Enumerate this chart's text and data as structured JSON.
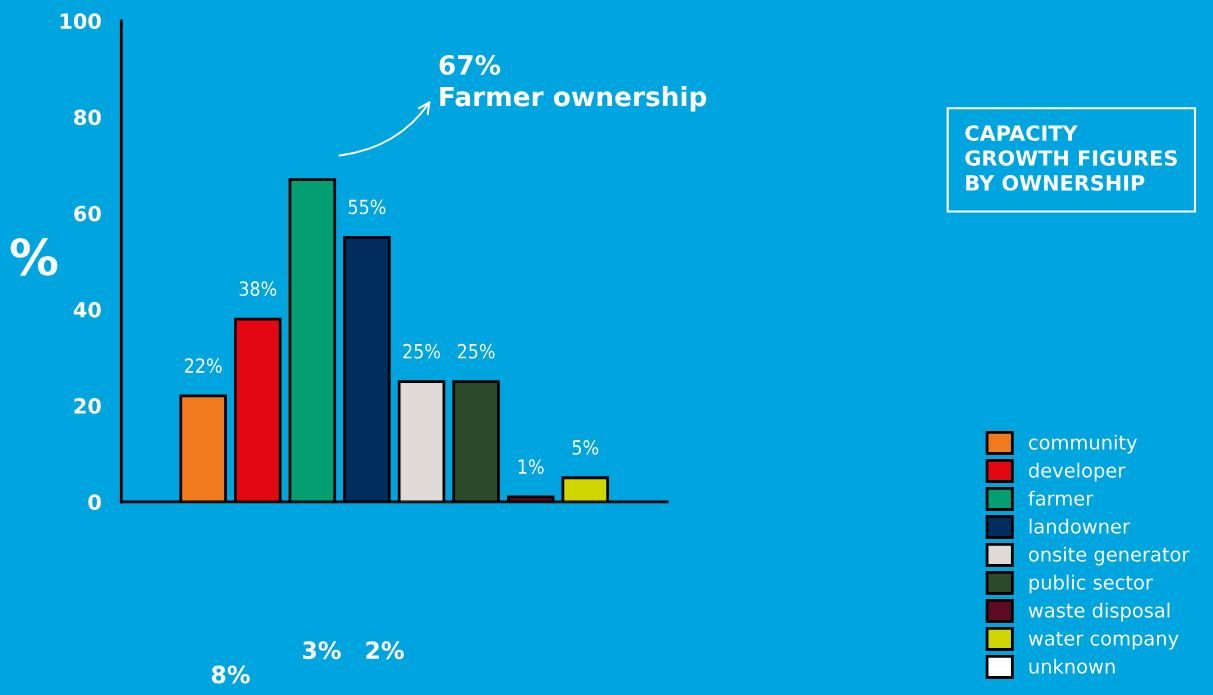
{
  "chart_data": {
    "type": "bar",
    "stacked": true,
    "title": "CAPACITY\nGROWTH FIGURES\nBY OWNERSHIP",
    "ylabel": "%",
    "categories": [
      null,
      null,
      null,
      null,
      null,
      null,
      null,
      null,
      null,
      null
    ],
    "series": [
      {
        "name": "community",
        "color": "#f07a1c",
        "values": [
          null,
          22,
          null,
          null,
          null,
          null,
          null,
          null,
          null,
          null
        ],
        "value_labels": [
          null,
          "22%",
          null,
          null,
          null,
          null,
          null,
          null,
          null,
          null
        ]
      },
      {
        "name": "developer",
        "color": "#e30613",
        "values": [
          null,
          null,
          38,
          null,
          null,
          null,
          null,
          null,
          null,
          null
        ],
        "value_labels": [
          null,
          null,
          "38%",
          null,
          null,
          null,
          null,
          null,
          null,
          null
        ]
      },
      {
        "name": "farmer",
        "color": "#039f71",
        "values": [
          null,
          null,
          null,
          67,
          null,
          null,
          null,
          null,
          null,
          null
        ]
      },
      {
        "name": "landowner",
        "color": "#002d5e",
        "values": [
          null,
          null,
          null,
          null,
          55,
          null,
          null,
          null,
          null,
          null
        ],
        "value_labels": [
          null,
          null,
          null,
          null,
          "55%",
          null,
          null,
          null,
          null,
          null
        ]
      },
      {
        "name": "onsite generator",
        "color": "#dfdad5",
        "values": [
          null,
          null,
          null,
          null,
          null,
          25,
          null,
          null,
          null,
          null
        ],
        "value_labels": [
          null,
          null,
          null,
          null,
          null,
          "25%",
          null,
          null,
          null,
          null
        ]
      },
      {
        "name": "public sector",
        "color": "#2c4a2b",
        "values": [
          null,
          null,
          null,
          null,
          null,
          null,
          25,
          null,
          null,
          null
        ],
        "value_labels": [
          null,
          null,
          null,
          null,
          null,
          null,
          "25%",
          null,
          null,
          null
        ]
      },
      {
        "name": "waste disposal",
        "color": "#5e0a22",
        "values": [
          null,
          null,
          null,
          null,
          null,
          null,
          null,
          1,
          null,
          null
        ],
        "value_labels": [
          null,
          null,
          null,
          null,
          null,
          null,
          null,
          "1%",
          null,
          null
        ]
      },
      {
        "name": "water company",
        "color": "#cfd600",
        "values": [
          null,
          null,
          null,
          null,
          null,
          null,
          null,
          null,
          5,
          null
        ],
        "value_labels": [
          null,
          null,
          null,
          null,
          null,
          null,
          null,
          null,
          "5%",
          null
        ]
      },
      {
        "name": "unknown",
        "color": "#ffffff",
        "values": [
          null,
          null,
          null,
          null,
          null,
          null,
          null,
          null,
          null,
          null
        ]
      }
    ],
    "annotations": [
      "67%\nFarmer ownership",
      "8%",
      "3%",
      "2%"
    ],
    "ylim": [
      0,
      100
    ],
    "yticks": [
      0,
      20,
      40,
      60,
      80,
      100
    ],
    "grid": false,
    "legend": "right"
  }
}
